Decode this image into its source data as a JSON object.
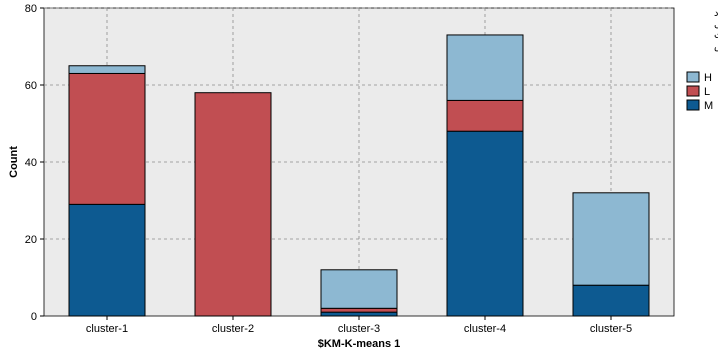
{
  "chart_data": {
    "type": "bar",
    "stacked": true,
    "categories": [
      "cluster-1",
      "cluster-2",
      "cluster-3",
      "cluster-4",
      "cluster-5"
    ],
    "series": [
      {
        "name": "M",
        "color": "#0d5a91",
        "values": [
          29,
          0,
          1,
          48,
          8
        ]
      },
      {
        "name": "L",
        "color": "#c14e52",
        "values": [
          34,
          58,
          1,
          8,
          0
        ]
      },
      {
        "name": "H",
        "color": "#8db8d2",
        "values": [
          2,
          0,
          10,
          17,
          24
        ]
      }
    ],
    "title": "",
    "xlabel": "$KM-K-means 1",
    "ylabel": "Count",
    "ylim": [
      0,
      80
    ],
    "yticks": [
      0,
      20,
      40,
      60,
      80
    ],
    "grid": true,
    "legend": {
      "position": "right",
      "title_lines": [
        "برآورد",
        "کلی",
        "اهمیت",
        "نفس"
      ],
      "entries": [
        "H",
        "L",
        "M"
      ]
    },
    "colors": {
      "background": "#ebebeb",
      "grid": "#8c8c8c",
      "bar_edge": "#000000"
    }
  }
}
